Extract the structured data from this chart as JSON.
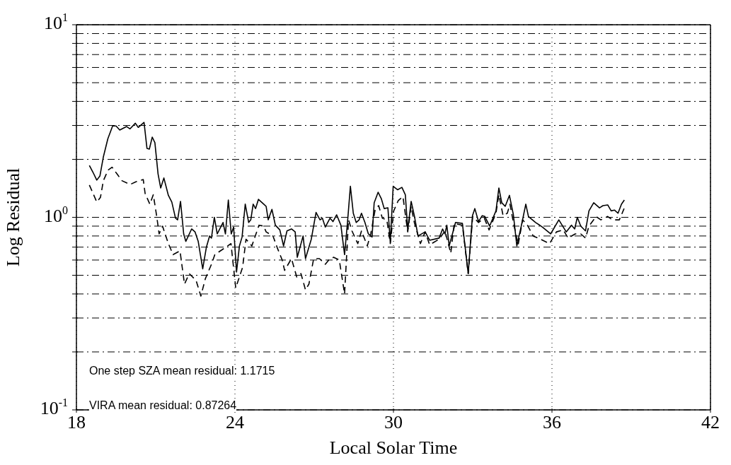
{
  "chart_data": {
    "type": "line",
    "xlabel": "Local Solar Time",
    "ylabel": "Log Residual",
    "xlim": [
      18,
      42
    ],
    "xticks": [
      18,
      24,
      30,
      36,
      42
    ],
    "ylim": [
      0.1,
      10
    ],
    "log": "y",
    "grid": true,
    "marker": "none",
    "yticks": [
      {
        "value": 0.1,
        "label": "10$^{-1}$"
      },
      {
        "value": 0.2,
        "label": null
      },
      {
        "value": 0.3,
        "label": null
      },
      {
        "value": 0.4,
        "label": null
      },
      {
        "value": 0.5,
        "label": null
      },
      {
        "value": 0.6,
        "label": null
      },
      {
        "value": 0.7,
        "label": null
      },
      {
        "value": 0.8,
        "label": null
      },
      {
        "value": 0.9,
        "label": null
      },
      {
        "value": 1,
        "label": "10$^{0}$"
      },
      {
        "value": 2,
        "label": null
      },
      {
        "value": 3,
        "label": null
      },
      {
        "value": 4,
        "label": null
      },
      {
        "value": 5,
        "label": null
      },
      {
        "value": 6,
        "label": null
      },
      {
        "value": 7,
        "label": null
      },
      {
        "value": 8,
        "label": null
      },
      {
        "value": 9,
        "label": null
      },
      {
        "value": 10,
        "label": "10$^{1}$"
      }
    ],
    "annotations": [
      "One step SZA mean residual: 1.1715",
      "VIRA mean residual: 0.87264"
    ],
    "series": [
      {
        "color": "#000000",
        "line_style": "solid",
        "x": [
          18.49,
          18.63,
          18.77,
          18.89,
          19.02,
          19.19,
          19.37,
          19.5,
          19.64,
          19.9,
          20.03,
          20.23,
          20.34,
          20.56,
          20.67,
          20.76,
          20.87,
          20.97,
          21.09,
          21.19,
          21.31,
          21.48,
          21.61,
          21.75,
          21.83,
          21.94,
          22.06,
          22.14,
          22.36,
          22.49,
          22.61,
          22.78,
          22.92,
          23.04,
          23.11,
          23.22,
          23.33,
          23.55,
          23.64,
          23.75,
          23.86,
          23.95,
          24.06,
          24.17,
          24.27,
          24.39,
          24.52,
          24.6,
          24.69,
          24.78,
          24.89,
          25.09,
          25.18,
          25.26,
          25.4,
          25.53,
          25.7,
          25.84,
          25.97,
          26.14,
          26.28,
          26.36,
          26.58,
          26.67,
          26.89,
          27.07,
          27.22,
          27.31,
          27.42,
          27.6,
          27.71,
          27.85,
          28.01,
          28.15,
          28.26,
          28.37,
          28.48,
          28.59,
          28.7,
          28.79,
          28.92,
          29.05,
          29.19,
          29.27,
          29.42,
          29.54,
          29.65,
          29.79,
          29.88,
          29.99,
          30.16,
          30.32,
          30.45,
          30.54,
          30.67,
          30.79,
          30.93,
          31.2,
          31.37,
          31.73,
          31.86,
          31.95,
          32.02,
          32.11,
          32.35,
          32.61,
          32.83,
          32.99,
          33.08,
          33.22,
          33.36,
          33.46,
          33.64,
          33.88,
          33.99,
          34.1,
          34.23,
          34.39,
          34.54,
          34.67,
          34.83,
          35.01,
          35.11,
          35.38,
          35.64,
          35.95,
          36.26,
          36.54,
          36.74,
          36.86,
          36.96,
          37.09,
          37.27,
          37.4,
          37.58,
          37.8,
          37.93,
          38.11,
          38.24,
          38.37,
          38.5,
          38.63,
          38.74
        ],
        "values": [
          1.86,
          1.71,
          1.56,
          1.64,
          2.06,
          2.56,
          2.98,
          2.98,
          2.84,
          2.96,
          2.88,
          3.08,
          2.93,
          3.11,
          2.28,
          2.26,
          2.61,
          2.44,
          1.68,
          1.42,
          1.6,
          1.3,
          1.2,
          0.99,
          0.97,
          1.21,
          0.82,
          0.75,
          0.87,
          0.84,
          0.75,
          0.54,
          0.7,
          0.8,
          0.78,
          1.0,
          0.82,
          0.94,
          0.82,
          1.23,
          0.82,
          0.89,
          0.52,
          0.71,
          0.79,
          1.17,
          0.94,
          0.97,
          1.17,
          1.11,
          1.24,
          1.17,
          1.14,
          0.97,
          1.1,
          0.91,
          0.86,
          0.71,
          0.85,
          0.87,
          0.84,
          0.62,
          0.8,
          0.61,
          0.77,
          1.06,
          0.97,
          0.99,
          0.89,
          0.99,
          0.95,
          1.03,
          0.91,
          0.64,
          0.94,
          1.45,
          1.05,
          0.94,
          0.97,
          1.05,
          0.94,
          0.82,
          0.79,
          1.19,
          1.35,
          1.25,
          1.11,
          1.12,
          0.74,
          1.45,
          1.39,
          1.43,
          1.31,
          0.86,
          1.21,
          1.02,
          0.8,
          0.84,
          0.76,
          0.78,
          0.87,
          0.82,
          0.91,
          0.71,
          0.94,
          0.93,
          0.51,
          1.02,
          1.11,
          0.95,
          1.02,
          1.01,
          0.9,
          1.08,
          1.42,
          1.19,
          1.14,
          1.3,
          1.03,
          0.71,
          0.89,
          1.17,
          1.01,
          0.94,
          0.89,
          0.82,
          0.97,
          0.84,
          0.91,
          0.87,
          1.0,
          0.9,
          0.85,
          1.08,
          1.19,
          1.12,
          1.15,
          1.16,
          1.08,
          1.09,
          1.05,
          1.17,
          1.23
        ]
      },
      {
        "color": "#000000",
        "line_style": "dashed",
        "x": [
          18.49,
          18.63,
          18.77,
          18.91,
          19.02,
          19.2,
          19.35,
          19.55,
          19.72,
          20.03,
          20.25,
          20.53,
          20.6,
          20.78,
          20.91,
          21.04,
          21.13,
          21.26,
          21.48,
          21.66,
          21.92,
          22.09,
          22.27,
          22.53,
          22.71,
          22.88,
          23.11,
          23.24,
          23.59,
          23.85,
          24.03,
          24.29,
          24.42,
          24.64,
          24.91,
          25.09,
          25.18,
          25.44,
          25.61,
          25.79,
          25.88,
          26.14,
          26.34,
          26.5,
          26.67,
          26.8,
          26.98,
          27.2,
          27.42,
          27.55,
          27.73,
          27.95,
          28.15,
          28.3,
          28.43,
          28.65,
          28.79,
          29.01,
          29.14,
          29.31,
          29.44,
          29.58,
          29.75,
          29.88,
          30.01,
          30.18,
          30.36,
          30.54,
          30.67,
          30.79,
          31.02,
          31.2,
          31.37,
          31.73,
          31.95,
          32.17,
          32.3,
          32.61,
          32.83,
          33.0,
          33.22,
          33.44,
          33.62,
          33.88,
          33.99,
          34.15,
          34.31,
          34.41,
          34.54,
          34.72,
          34.89,
          35.07,
          35.29,
          35.56,
          35.91,
          36.17,
          36.43,
          36.61,
          36.88,
          37.09,
          37.27,
          37.4,
          37.67,
          37.85,
          38.11,
          38.29,
          38.55,
          38.73
        ],
        "values": [
          1.47,
          1.33,
          1.2,
          1.27,
          1.55,
          1.76,
          1.82,
          1.67,
          1.55,
          1.48,
          1.53,
          1.57,
          1.33,
          1.17,
          1.31,
          1.01,
          0.82,
          0.9,
          0.73,
          0.64,
          0.67,
          0.45,
          0.51,
          0.47,
          0.39,
          0.48,
          0.57,
          0.64,
          0.69,
          0.73,
          0.43,
          0.55,
          0.77,
          0.71,
          0.91,
          0.9,
          0.84,
          0.8,
          0.69,
          0.6,
          0.53,
          0.61,
          0.49,
          0.51,
          0.42,
          0.45,
          0.61,
          0.61,
          0.57,
          0.6,
          0.62,
          0.6,
          0.4,
          0.97,
          0.85,
          0.73,
          0.85,
          0.71,
          0.82,
          1.1,
          1.15,
          0.99,
          0.97,
          0.73,
          1.08,
          1.22,
          1.28,
          0.84,
          1.14,
          0.94,
          0.73,
          0.84,
          0.72,
          0.77,
          0.85,
          0.65,
          0.93,
          0.91,
          0.51,
          1.01,
          0.94,
          0.99,
          0.86,
          1.05,
          1.31,
          1.02,
          1.05,
          1.17,
          0.94,
          0.72,
          0.97,
          0.91,
          0.8,
          0.77,
          0.73,
          0.84,
          0.86,
          0.78,
          0.82,
          0.82,
          0.78,
          0.9,
          1.01,
          0.97,
          1.01,
          0.97,
          0.97,
          1.11
        ]
      }
    ]
  }
}
